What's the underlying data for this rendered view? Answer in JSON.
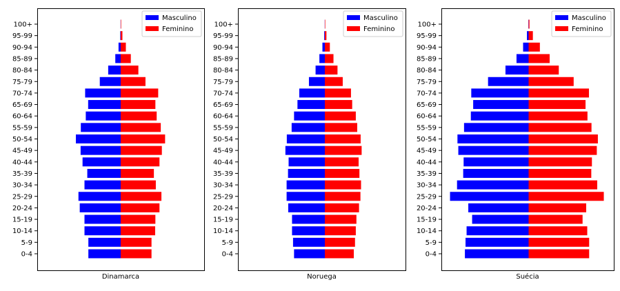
{
  "chart_data": [
    {
      "type": "bar",
      "orientation": "horizontal",
      "xlabel": "Dinamarca",
      "categories": [
        "0-4",
        "5-9",
        "10-14",
        "15-19",
        "20-24",
        "25-29",
        "30-34",
        "35-39",
        "40-44",
        "45-49",
        "50-54",
        "55-59",
        "60-64",
        "65-69",
        "70-74",
        "75-79",
        "80-84",
        "85-89",
        "90-94",
        "95-99",
        "100+"
      ],
      "series": [
        {
          "name": "Masculino",
          "color": "#0000ff",
          "values": [
            150,
            150,
            168,
            168,
            190,
            196,
            168,
            155,
            177,
            186,
            208,
            185,
            162,
            151,
            165,
            97,
            58,
            25,
            10,
            2,
            0.5
          ]
        },
        {
          "name": "Feminino",
          "color": "#ff0000",
          "values": [
            143,
            143,
            160,
            161,
            180,
            189,
            163,
            154,
            180,
            191,
            206,
            186,
            167,
            161,
            174,
            115,
            82,
            47,
            24,
            8,
            2
          ]
        }
      ],
      "legend": "top-right",
      "grid": false
    },
    {
      "type": "bar",
      "orientation": "horizontal",
      "xlabel": "Noruega",
      "categories": [
        "0-4",
        "5-9",
        "10-14",
        "15-19",
        "20-24",
        "25-29",
        "30-34",
        "35-39",
        "40-44",
        "45-49",
        "50-54",
        "55-59",
        "60-64",
        "65-69",
        "70-74",
        "75-79",
        "80-84",
        "85-89",
        "90-94",
        "95-99",
        "100+"
      ],
      "series": [
        {
          "name": "Masculino",
          "color": "#0000ff",
          "values": [
            153,
            158,
            163,
            163,
            182,
            190,
            190,
            183,
            180,
            196,
            189,
            165,
            153,
            136,
            127,
            79,
            46,
            27,
            12,
            3,
            0.5
          ]
        },
        {
          "name": "Feminino",
          "color": "#ff0000",
          "values": [
            144,
            150,
            154,
            157,
            170,
            177,
            180,
            172,
            168,
            183,
            178,
            161,
            154,
            136,
            130,
            89,
            63,
            43,
            25,
            8,
            2
          ]
        }
      ],
      "legend": "top-right",
      "grid": false
    },
    {
      "type": "bar",
      "orientation": "horizontal",
      "xlabel": "Suécia",
      "categories": [
        "0-4",
        "5-9",
        "10-14",
        "15-19",
        "20-24",
        "25-29",
        "30-34",
        "35-39",
        "40-44",
        "45-49",
        "50-54",
        "55-59",
        "60-64",
        "65-69",
        "70-74",
        "75-79",
        "80-84",
        "85-89",
        "90-94",
        "95-99",
        "100+"
      ],
      "series": [
        {
          "name": "Masculino",
          "color": "#0000ff",
          "values": [
            300,
            297,
            292,
            266,
            284,
            370,
            337,
            308,
            306,
            331,
            335,
            304,
            272,
            261,
            270,
            191,
            109,
            57,
            26,
            8,
            1
          ]
        },
        {
          "name": "Feminino",
          "color": "#ff0000",
          "values": [
            285,
            285,
            276,
            254,
            271,
            354,
            323,
            295,
            298,
            321,
            326,
            296,
            277,
            268,
            284,
            212,
            142,
            99,
            53,
            20,
            4
          ]
        }
      ],
      "legend": "top-right",
      "grid": false
    }
  ]
}
